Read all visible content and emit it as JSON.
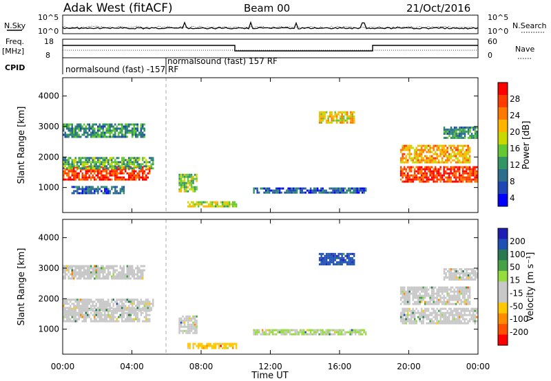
{
  "header": {
    "radar": "Adak West (fitACF)",
    "beam": "Beam 00",
    "date": "21/Oct/2016"
  },
  "panels": {
    "nsky_label": "N.Sky",
    "nsearch_label": "N.Search",
    "nsky_ticks": [
      "10^5",
      "10^0"
    ],
    "nsearch_ticks": [
      "10^5",
      "10^0"
    ],
    "freq_label": "Freq.",
    "freq_unit": "[MHz]",
    "freq_ticks": [
      "18",
      "8"
    ],
    "nave_label": "Nave",
    "nave_ticks": [
      "60",
      "0"
    ],
    "cpid_label": "CPID",
    "cpid_text_1": "normalsound (fast) -157 RF",
    "cpid_text_2": "normalsound (fast) 157 RF"
  },
  "colorbars": {
    "power_title": "Power [dB]",
    "power_ticks": [
      "28",
      "24",
      "20",
      "16",
      "12",
      "8",
      "4"
    ],
    "power_colors": [
      "#ff0000",
      "#ff3c00",
      "#ff7800",
      "#ffb400",
      "#c8d800",
      "#64c832",
      "#329664",
      "#2d6e8c",
      "#1e46b4",
      "#0000ff"
    ],
    "velocity_title": "Velocity [m s⁻¹]",
    "velocity_ticks": [
      "200",
      "100",
      "50",
      "15",
      "-15",
      "-50",
      "-100",
      "-200"
    ],
    "velocity_colors": [
      "#1e1eb4",
      "#1e50b4",
      "#287850",
      "#46a046",
      "#96dc3c",
      "#c8c8c8",
      "#c8c8c8",
      "#ffc800",
      "#ff8c00",
      "#ff5000",
      "#ff0000"
    ]
  },
  "chart_data": [
    {
      "type": "heatmap",
      "title": "Power",
      "xlabel": "Time UT",
      "ylabel": "Slant Range [km]",
      "xlim": [
        "00:00",
        "24:00"
      ],
      "ylim": [
        180,
        4600
      ],
      "x_ticks": [
        "00:00",
        "04:00",
        "08:00",
        "12:00",
        "16:00",
        "20:00",
        "00:00"
      ],
      "y_ticks": [
        1000,
        2000,
        3000,
        4000
      ],
      "colorbar": "Power [dB]",
      "zlim": [
        0,
        30
      ],
      "dashed_line_time": "06:00",
      "regions": [
        {
          "t0": 0.0,
          "t1": 5.0,
          "r0": 1250,
          "r1": 1700,
          "db": 26
        },
        {
          "t0": 0.0,
          "t1": 5.2,
          "r0": 1650,
          "r1": 2000,
          "db": 12
        },
        {
          "t0": 0.0,
          "t1": 4.7,
          "r0": 2650,
          "r1": 3100,
          "db": 10
        },
        {
          "t0": 0.5,
          "t1": 3.5,
          "r0": 800,
          "r1": 1050,
          "db": 6
        },
        {
          "t0": 6.7,
          "t1": 7.7,
          "r0": 850,
          "r1": 1450,
          "db": 14
        },
        {
          "t0": 7.2,
          "t1": 10.0,
          "r0": 380,
          "r1": 550,
          "db": 16
        },
        {
          "t0": 11.0,
          "t1": 17.5,
          "r0": 800,
          "r1": 1000,
          "db": 6
        },
        {
          "t0": 14.8,
          "t1": 16.8,
          "r0": 3150,
          "r1": 3500,
          "db": 18
        },
        {
          "t0": 19.5,
          "t1": 24.0,
          "r0": 1200,
          "r1": 1700,
          "db": 26
        },
        {
          "t0": 19.5,
          "t1": 23.5,
          "r0": 1800,
          "r1": 2400,
          "db": 20
        },
        {
          "t0": 22.0,
          "t1": 24.0,
          "r0": 2650,
          "r1": 3000,
          "db": 10
        }
      ]
    },
    {
      "type": "heatmap",
      "title": "Velocity",
      "xlabel": "Time UT",
      "ylabel": "Slant Range [km]",
      "xlim": [
        "00:00",
        "24:00"
      ],
      "ylim": [
        180,
        4600
      ],
      "x_ticks": [
        "00:00",
        "04:00",
        "08:00",
        "12:00",
        "16:00",
        "20:00",
        "00:00"
      ],
      "y_ticks": [
        1000,
        2000,
        3000,
        4000
      ],
      "colorbar": "Velocity [m s⁻¹]",
      "zlim": [
        -200,
        200
      ],
      "dashed_line_time": "06:00",
      "regions": [
        {
          "t0": 0.0,
          "t1": 5.0,
          "r0": 1250,
          "r1": 1700,
          "v": 0
        },
        {
          "t0": 0.0,
          "t1": 5.2,
          "r0": 1650,
          "r1": 2000,
          "v": 0
        },
        {
          "t0": 0.0,
          "t1": 4.7,
          "r0": 2650,
          "r1": 3100,
          "v": 0
        },
        {
          "t0": 6.7,
          "t1": 7.7,
          "r0": 850,
          "r1": 1450,
          "v": 0
        },
        {
          "t0": 7.2,
          "t1": 10.0,
          "r0": 380,
          "r1": 550,
          "v": -70
        },
        {
          "t0": 11.0,
          "t1": 17.5,
          "r0": 800,
          "r1": 1000,
          "v": 20
        },
        {
          "t0": 14.8,
          "t1": 16.8,
          "r0": 3150,
          "r1": 3500,
          "v": 150
        },
        {
          "t0": 19.5,
          "t1": 24.0,
          "r0": 1200,
          "r1": 1700,
          "v": 0
        },
        {
          "t0": 19.5,
          "t1": 23.5,
          "r0": 1800,
          "r1": 2400,
          "v": 0
        },
        {
          "t0": 22.0,
          "t1": 24.0,
          "r0": 2650,
          "r1": 3000,
          "v": 0
        }
      ]
    }
  ]
}
